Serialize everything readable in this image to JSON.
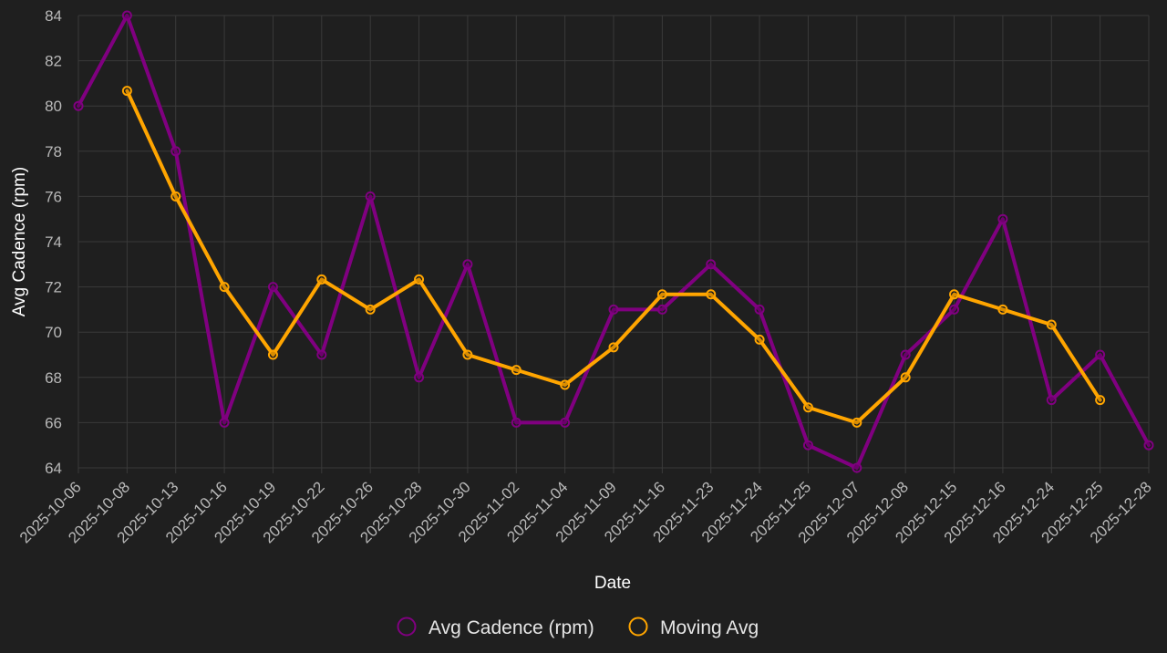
{
  "chart_data": {
    "type": "line",
    "xlabel": "Date",
    "ylabel": "Avg Cadence (rpm)",
    "ylim": [
      64,
      84
    ],
    "y_ticks": [
      64,
      66,
      68,
      70,
      72,
      74,
      76,
      78,
      80,
      82,
      84
    ],
    "grid": true,
    "legend_position": "bottom",
    "categories": [
      "2025-10-06",
      "2025-10-08",
      "2025-10-13",
      "2025-10-16",
      "2025-10-19",
      "2025-10-22",
      "2025-10-26",
      "2025-10-28",
      "2025-10-30",
      "2025-11-02",
      "2025-11-04",
      "2025-11-09",
      "2025-11-16",
      "2025-11-23",
      "2025-11-24",
      "2025-11-25",
      "2025-12-07",
      "2025-12-08",
      "2025-12-15",
      "2025-12-16",
      "2025-12-24",
      "2025-12-25",
      "2025-12-28"
    ],
    "series": [
      {
        "name": "Avg Cadence (rpm)",
        "color": "#800080",
        "values": [
          80,
          84,
          78,
          66,
          72,
          69,
          76,
          68,
          73,
          66,
          66,
          71,
          71,
          73,
          71,
          65,
          64,
          69,
          71,
          75,
          67,
          69,
          65
        ]
      },
      {
        "name": "Moving Avg",
        "color": "#ffa500",
        "values": [
          null,
          80.67,
          76,
          72,
          69,
          72.33,
          71,
          72.33,
          69,
          68.33,
          67.67,
          69.33,
          71.67,
          71.67,
          69.67,
          66.67,
          66,
          68,
          71.67,
          71,
          70.33,
          67,
          null
        ]
      }
    ]
  }
}
